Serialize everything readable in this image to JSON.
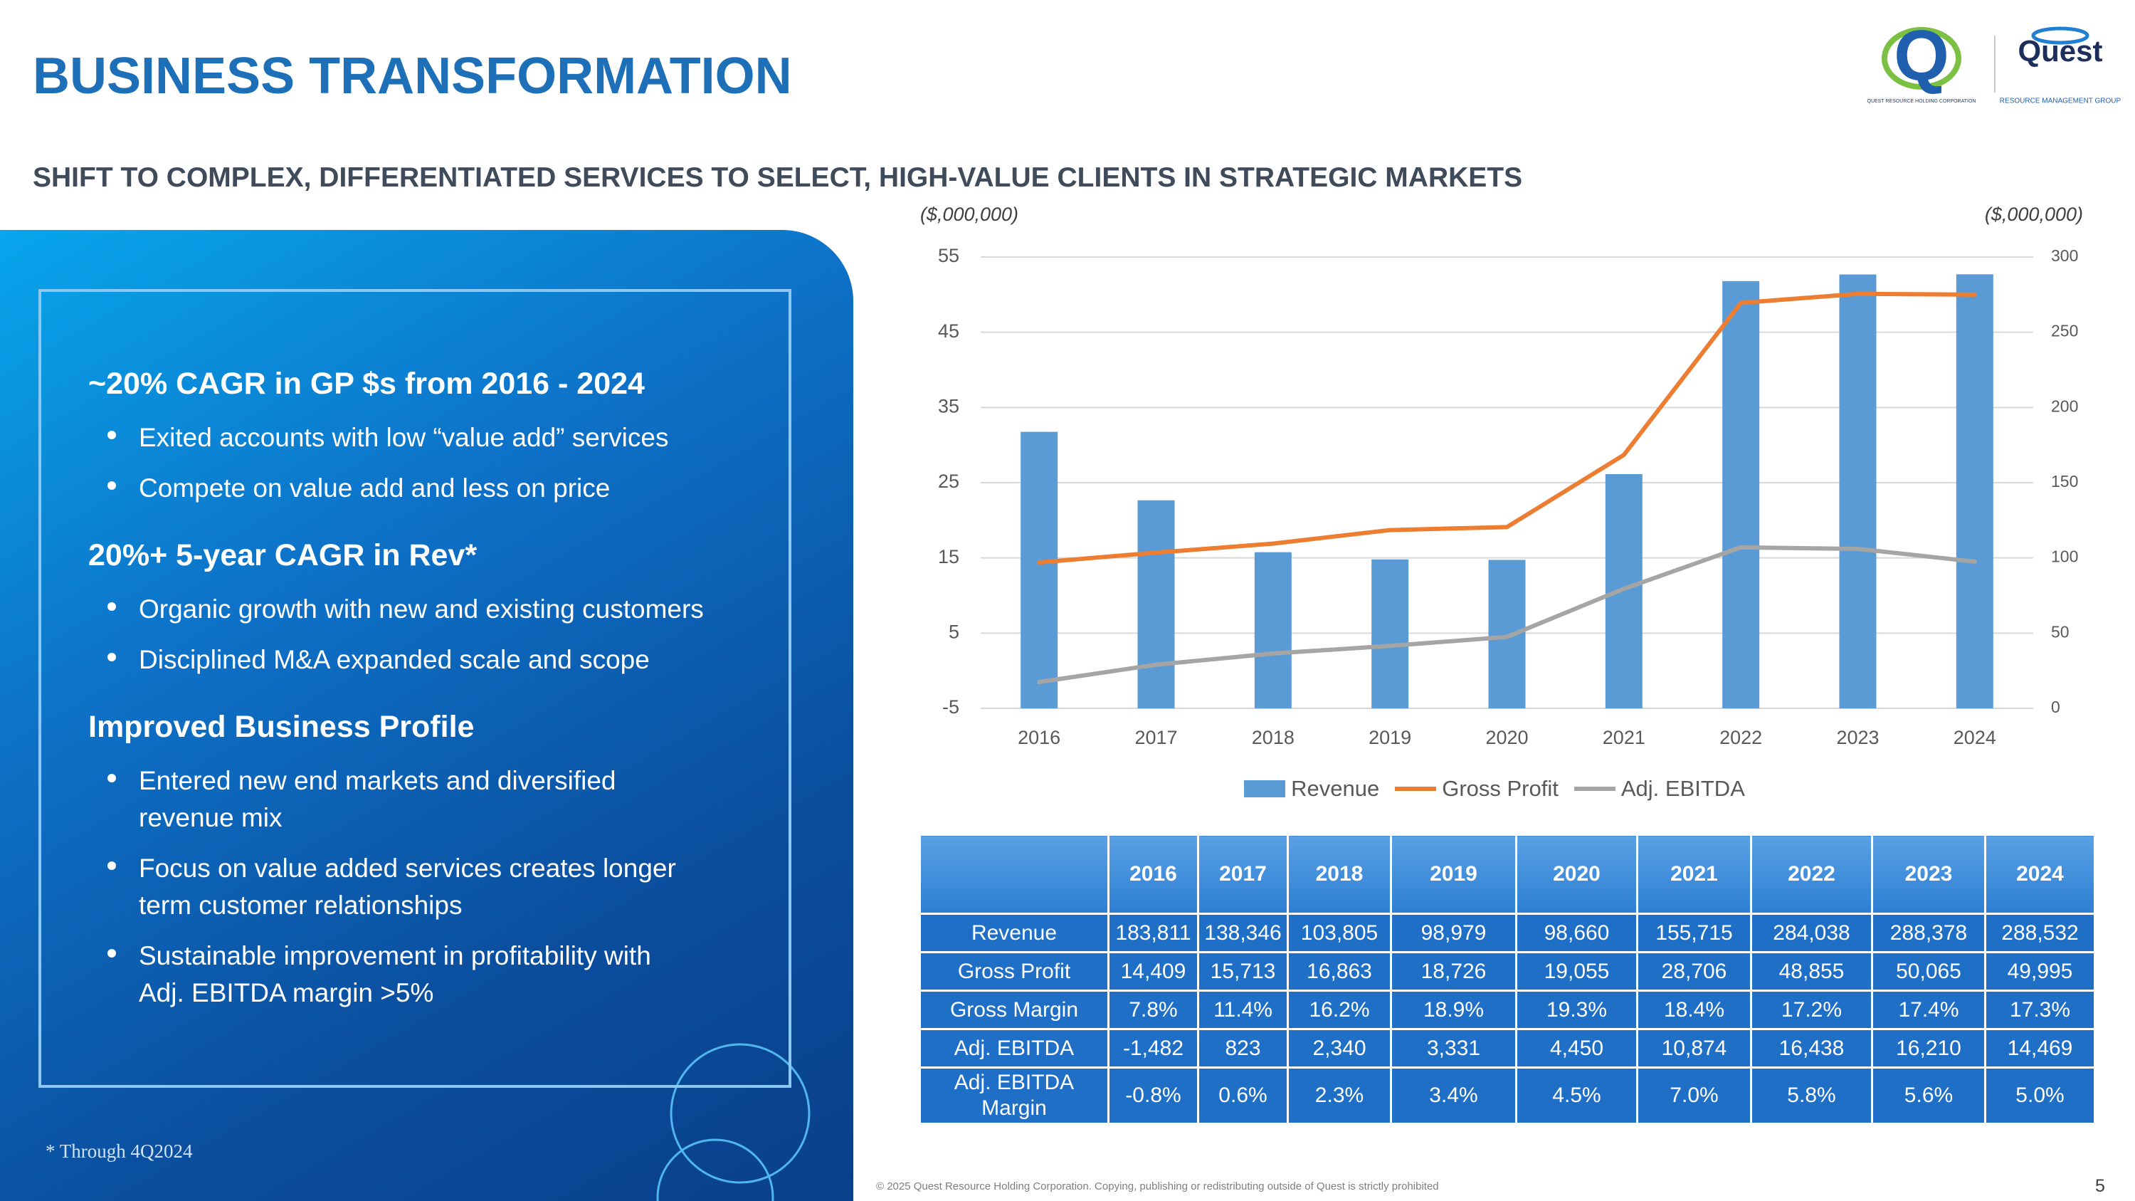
{
  "header": {
    "title": "BUSINESS TRANSFORMATION",
    "subtitle": "SHIFT TO COMPLEX, DIFFERENTIATED SERVICES TO SELECT, HIGH-VALUE CLIENTS IN STRATEGIC MARKETS"
  },
  "logo": {
    "left_caption": "QUEST RESOURCE HOLDING CORPORATION",
    "name": "Quest",
    "right_caption": "RESOURCE MANAGEMENT GROUP"
  },
  "panel": {
    "sections": [
      {
        "heading": "~20% CAGR in GP $s from 2016 - 2024",
        "bullets": [
          {
            "lines": [
              "Exited accounts with low “value add” services"
            ]
          },
          {
            "lines": [
              "Compete on value add and less on price"
            ]
          }
        ]
      },
      {
        "heading": "20%+ 5-year CAGR in Rev*",
        "bullets": [
          {
            "lines": [
              "Organic growth with new and existing customers"
            ]
          },
          {
            "lines": [
              "Disciplined M&A expanded scale and scope"
            ]
          }
        ]
      },
      {
        "heading": "Improved Business Profile",
        "bullets": [
          {
            "lines": [
              "Entered new end markets and diversified",
              "revenue mix"
            ]
          },
          {
            "lines": [
              "Focus on value added services creates longer",
              "term customer relationships"
            ]
          },
          {
            "lines": [
              "Sustainable improvement in profitability with",
              "Adj. EBITDA margin >5%"
            ]
          }
        ]
      }
    ],
    "footnote": "* Through 4Q2024"
  },
  "chart_data": {
    "type": "bar",
    "ylabel": "($,000,000)",
    "y2label": "($,000,000)",
    "categories": [
      "2016",
      "2017",
      "2018",
      "2019",
      "2020",
      "2021",
      "2022",
      "2023",
      "2024"
    ],
    "series": [
      {
        "name": "Revenue",
        "type": "bar",
        "axis": "y2",
        "color": "#5b9bd5",
        "values": [
          183.8,
          138.3,
          103.8,
          99.0,
          98.7,
          155.7,
          284.0,
          288.4,
          288.5
        ]
      },
      {
        "name": "Gross Profit",
        "type": "line",
        "color": "#ed7d31",
        "values": [
          14.4,
          15.7,
          16.9,
          18.7,
          19.1,
          28.7,
          48.9,
          50.1,
          50.0
        ]
      },
      {
        "name": "Adj. EBITDA",
        "type": "line",
        "color": "#a5a5a5",
        "values": [
          -1.5,
          0.8,
          2.3,
          3.3,
          4.5,
          10.9,
          16.4,
          16.2,
          14.5
        ]
      }
    ],
    "ylim": [
      -5,
      55
    ],
    "yticks": [
      -5,
      5,
      15,
      25,
      35,
      45,
      55
    ],
    "y2lim": [
      0,
      300
    ],
    "y2ticks": [
      0,
      50,
      100,
      150,
      200,
      250,
      300
    ],
    "grid": true,
    "legend": "bottom"
  },
  "table": {
    "columns": [
      "2016",
      "2017",
      "2018",
      "2019",
      "2020",
      "2021",
      "2022",
      "2023",
      "2024"
    ],
    "rows": [
      {
        "label": "Revenue",
        "values": [
          "183,811",
          "138,346",
          "103,805",
          "98,979",
          "98,660",
          "155,715",
          "284,038",
          "288,378",
          "288,532"
        ]
      },
      {
        "label": "Gross Profit",
        "values": [
          "14,409",
          "15,713",
          "16,863",
          "18,726",
          "19,055",
          "28,706",
          "48,855",
          "50,065",
          "49,995"
        ]
      },
      {
        "label": "Gross Margin",
        "values": [
          "7.8%",
          "11.4%",
          "16.2%",
          "18.9%",
          "19.3%",
          "18.4%",
          "17.2%",
          "17.4%",
          "17.3%"
        ]
      },
      {
        "label": "Adj. EBITDA",
        "values": [
          "-1,482",
          "823",
          "2,340",
          "3,331",
          "4,450",
          "10,874",
          "16,438",
          "16,210",
          "14,469"
        ]
      },
      {
        "label": "Adj. EBITDA Margin",
        "values": [
          "-0.8%",
          "0.6%",
          "2.3%",
          "3.4%",
          "4.5%",
          "7.0%",
          "5.8%",
          "5.6%",
          "5.0%"
        ]
      }
    ]
  },
  "footer": {
    "copyright": "© 2025 Quest Resource Holding Corporation.  Copying, publishing or redistributing outside of Quest is strictly prohibited",
    "page": "5"
  }
}
